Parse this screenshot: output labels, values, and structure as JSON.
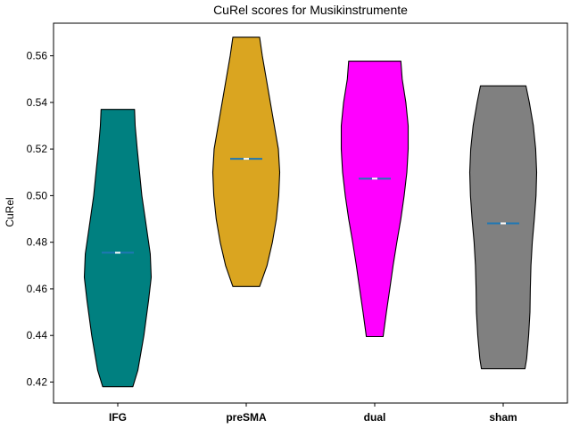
{
  "chart_data": {
    "type": "violin",
    "title": "CuRel scores for Musikinstrumente",
    "xlabel": "",
    "ylabel": "CuRel",
    "categories": [
      "IFG",
      "preSMA",
      "dual",
      "sham"
    ],
    "ylim": [
      0.411,
      0.574
    ],
    "yticks": [
      0.42,
      0.44,
      0.46,
      0.48,
      0.5,
      0.52,
      0.54,
      0.56
    ],
    "ytick_labels": [
      "0.42",
      "0.44",
      "0.46",
      "0.48",
      "0.50",
      "0.52",
      "0.54",
      "0.56"
    ],
    "grid": false,
    "series": [
      {
        "category": "IFG",
        "color": "#008080",
        "min": 0.418,
        "max": 0.537,
        "median": 0.4755,
        "profile": [
          [
            0.418,
            0.45
          ],
          [
            0.425,
            0.6
          ],
          [
            0.44,
            0.78
          ],
          [
            0.455,
            0.92
          ],
          [
            0.465,
            1.0
          ],
          [
            0.475,
            0.97
          ],
          [
            0.49,
            0.82
          ],
          [
            0.5,
            0.72
          ],
          [
            0.51,
            0.65
          ],
          [
            0.52,
            0.58
          ],
          [
            0.53,
            0.52
          ],
          [
            0.537,
            0.5
          ]
        ]
      },
      {
        "category": "preSMA",
        "color": "#DAA520",
        "min": 0.461,
        "max": 0.568,
        "median": 0.5158,
        "profile": [
          [
            0.461,
            0.4
          ],
          [
            0.47,
            0.62
          ],
          [
            0.48,
            0.78
          ],
          [
            0.49,
            0.9
          ],
          [
            0.5,
            0.97
          ],
          [
            0.51,
            1.0
          ],
          [
            0.52,
            0.96
          ],
          [
            0.53,
            0.84
          ],
          [
            0.54,
            0.72
          ],
          [
            0.55,
            0.6
          ],
          [
            0.56,
            0.48
          ],
          [
            0.568,
            0.4
          ]
        ]
      },
      {
        "category": "dual",
        "color": "#FF00FF",
        "min": 0.4395,
        "max": 0.5577,
        "median": 0.5073,
        "profile": [
          [
            0.4395,
            0.25
          ],
          [
            0.45,
            0.35
          ],
          [
            0.46,
            0.45
          ],
          [
            0.47,
            0.55
          ],
          [
            0.48,
            0.66
          ],
          [
            0.49,
            0.78
          ],
          [
            0.5,
            0.88
          ],
          [
            0.51,
            0.96
          ],
          [
            0.52,
            1.0
          ],
          [
            0.53,
            1.0
          ],
          [
            0.54,
            0.93
          ],
          [
            0.55,
            0.82
          ],
          [
            0.5577,
            0.78
          ]
        ]
      },
      {
        "category": "sham",
        "color": "#808080",
        "min": 0.4257,
        "max": 0.5471,
        "median": 0.4881,
        "profile": [
          [
            0.4257,
            0.65
          ],
          [
            0.43,
            0.7
          ],
          [
            0.44,
            0.76
          ],
          [
            0.45,
            0.8
          ],
          [
            0.46,
            0.81
          ],
          [
            0.47,
            0.83
          ],
          [
            0.48,
            0.87
          ],
          [
            0.49,
            0.93
          ],
          [
            0.5,
            0.98
          ],
          [
            0.51,
            1.0
          ],
          [
            0.52,
            0.97
          ],
          [
            0.53,
            0.9
          ],
          [
            0.54,
            0.78
          ],
          [
            0.5471,
            0.68
          ]
        ]
      }
    ]
  }
}
